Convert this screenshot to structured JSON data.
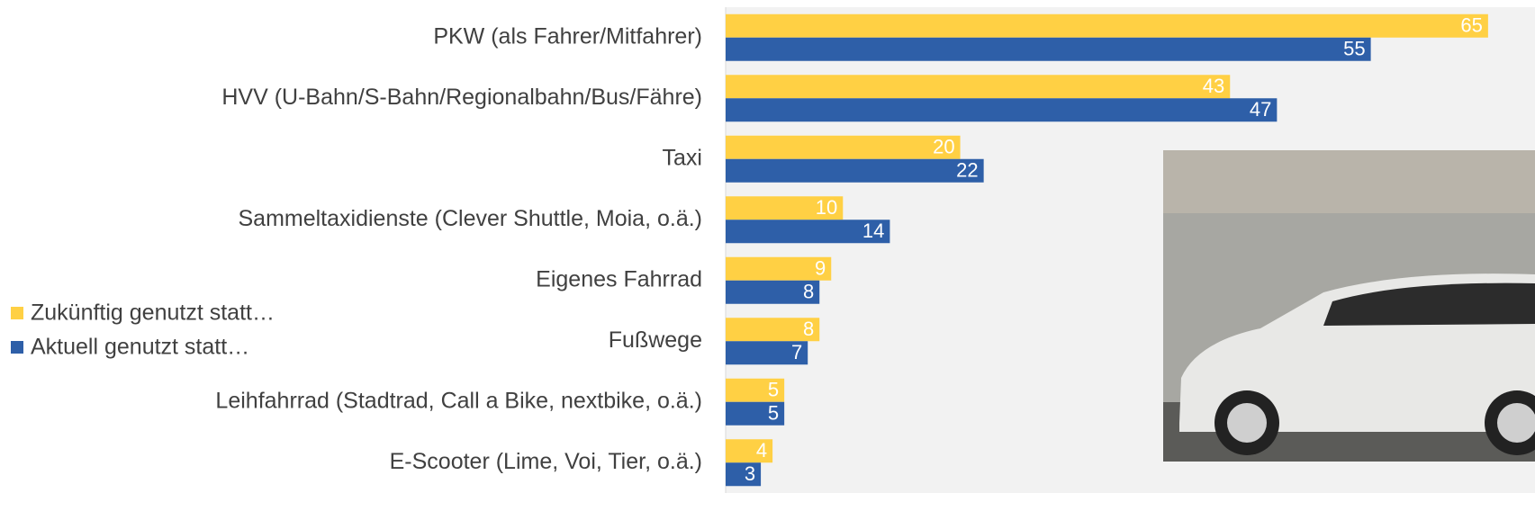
{
  "chart_data": {
    "type": "grouped-horizontal-bar",
    "categories": [
      "PKW (als Fahrer/Mitfahrer)",
      "HVV (U-Bahn/S-Bahn/Regionalbahn/Bus/Fähre)",
      "Taxi",
      "Sammeltaxidienste (Clever Shuttle, Moia, o.ä.)",
      "Eigenes Fahrrad",
      "Fußwege",
      "Leihfahrrad (Stadtrad, Call a Bike, nextbike, o.ä.)",
      "E-Scooter (Lime, Voi, Tier, o.ä.)"
    ],
    "series": [
      {
        "name": "Zukünftig genutzt statt…",
        "color": "#ffd044",
        "values": [
          65,
          43,
          20,
          10,
          9,
          8,
          5,
          4
        ]
      },
      {
        "name": "Aktuell genutzt statt…",
        "color": "#2e5fa8",
        "values": [
          55,
          47,
          22,
          14,
          8,
          7,
          5,
          3
        ]
      }
    ],
    "xlim": [
      0,
      69
    ],
    "legend": "left"
  }
}
